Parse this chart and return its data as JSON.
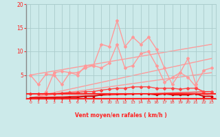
{
  "bg_color": "#cceaea",
  "grid_color": "#aacccc",
  "line_color_dark": "#ff2222",
  "line_color_light": "#ff9999",
  "xlabel": "Vent moyen/en rafales ( km/h )",
  "x_ticks": [
    0,
    1,
    2,
    3,
    4,
    5,
    6,
    7,
    8,
    9,
    10,
    11,
    12,
    13,
    14,
    15,
    16,
    17,
    18,
    19,
    20,
    21,
    22,
    23
  ],
  "ylim": [
    0,
    20
  ],
  "xlim": [
    -0.5,
    23.5
  ],
  "yticks": [
    5,
    10,
    15,
    20
  ],
  "series_light_jagged": {
    "x": [
      0,
      1,
      2,
      3,
      4,
      5,
      6,
      7,
      8,
      9,
      10,
      11,
      12,
      13,
      14,
      15,
      16,
      17,
      18,
      19,
      20,
      21,
      22,
      23
    ],
    "y": [
      5.0,
      3.0,
      5.2,
      5.0,
      3.0,
      5.5,
      5.5,
      6.5,
      7.0,
      6.5,
      7.5,
      11.5,
      6.5,
      7.0,
      9.5,
      10.0,
      7.0,
      3.5,
      4.5,
      5.5,
      8.5,
      3.0,
      6.0,
      6.5
    ],
    "color": "#ff9999",
    "lw": 1.0,
    "ms": 2
  },
  "series_light_jagged2": {
    "x": [
      0,
      1,
      2,
      3,
      4,
      5,
      6,
      7,
      8,
      9,
      10,
      11,
      12,
      13,
      14,
      15,
      16,
      17,
      18,
      19,
      20,
      21,
      22,
      23
    ],
    "y": [
      0.2,
      0.0,
      1.5,
      5.5,
      5.8,
      5.5,
      5.0,
      7.0,
      7.0,
      11.5,
      11.0,
      16.5,
      11.0,
      13.0,
      11.5,
      13.0,
      10.5,
      6.5,
      3.0,
      5.5,
      4.5,
      2.5,
      1.0,
      0.5
    ],
    "color": "#ff9999",
    "lw": 1.0,
    "ms": 2
  },
  "trend_light1": {
    "x": [
      0,
      23
    ],
    "y": [
      5.0,
      11.5
    ],
    "color": "#ff9999",
    "lw": 1.0
  },
  "trend_light2": {
    "x": [
      0,
      23
    ],
    "y": [
      0.2,
      8.5
    ],
    "color": "#ff9999",
    "lw": 1.0
  },
  "trend_light3": {
    "x": [
      0,
      23
    ],
    "y": [
      0.2,
      5.5
    ],
    "color": "#ff9999",
    "lw": 1.0
  },
  "series_dark_upper": {
    "x": [
      0,
      1,
      2,
      3,
      4,
      5,
      6,
      7,
      8,
      9,
      10,
      11,
      12,
      13,
      14,
      15,
      16,
      17,
      18,
      19,
      20,
      21,
      22,
      23
    ],
    "y": [
      1.0,
      1.0,
      1.0,
      1.0,
      1.2,
      1.3,
      1.3,
      1.5,
      1.5,
      1.8,
      2.0,
      2.2,
      2.2,
      2.5,
      2.5,
      2.5,
      2.2,
      2.2,
      2.2,
      2.0,
      2.2,
      2.2,
      1.5,
      1.5
    ],
    "color": "#ff4444",
    "lw": 1.0,
    "ms": 2
  },
  "series_dark_lower": {
    "x": [
      0,
      1,
      2,
      3,
      4,
      5,
      6,
      7,
      8,
      9,
      10,
      11,
      12,
      13,
      14,
      15,
      16,
      17,
      18,
      19,
      20,
      21,
      22,
      23
    ],
    "y": [
      0.2,
      0.2,
      0.2,
      0.2,
      0.2,
      0.3,
      0.3,
      0.5,
      0.5,
      0.8,
      1.0,
      1.0,
      1.0,
      1.0,
      1.0,
      1.0,
      0.8,
      1.0,
      0.8,
      0.8,
      0.8,
      1.0,
      0.5,
      0.5
    ],
    "color": "#cc0000",
    "lw": 1.2,
    "ms": 2
  },
  "trend_dark": {
    "x": [
      0,
      23
    ],
    "y": [
      0.2,
      1.5
    ],
    "color": "#ff4444",
    "lw": 1.0
  },
  "hline_y": 1.0,
  "arrows": [
    "→",
    "→",
    "↗",
    "→",
    "↗",
    "↗",
    "↘",
    "↗",
    "→",
    "↗",
    "↗",
    "↑",
    "↗",
    "↓",
    "↗",
    "←",
    "→",
    "←",
    "←",
    "←",
    "↓",
    "←",
    "←",
    "←"
  ]
}
